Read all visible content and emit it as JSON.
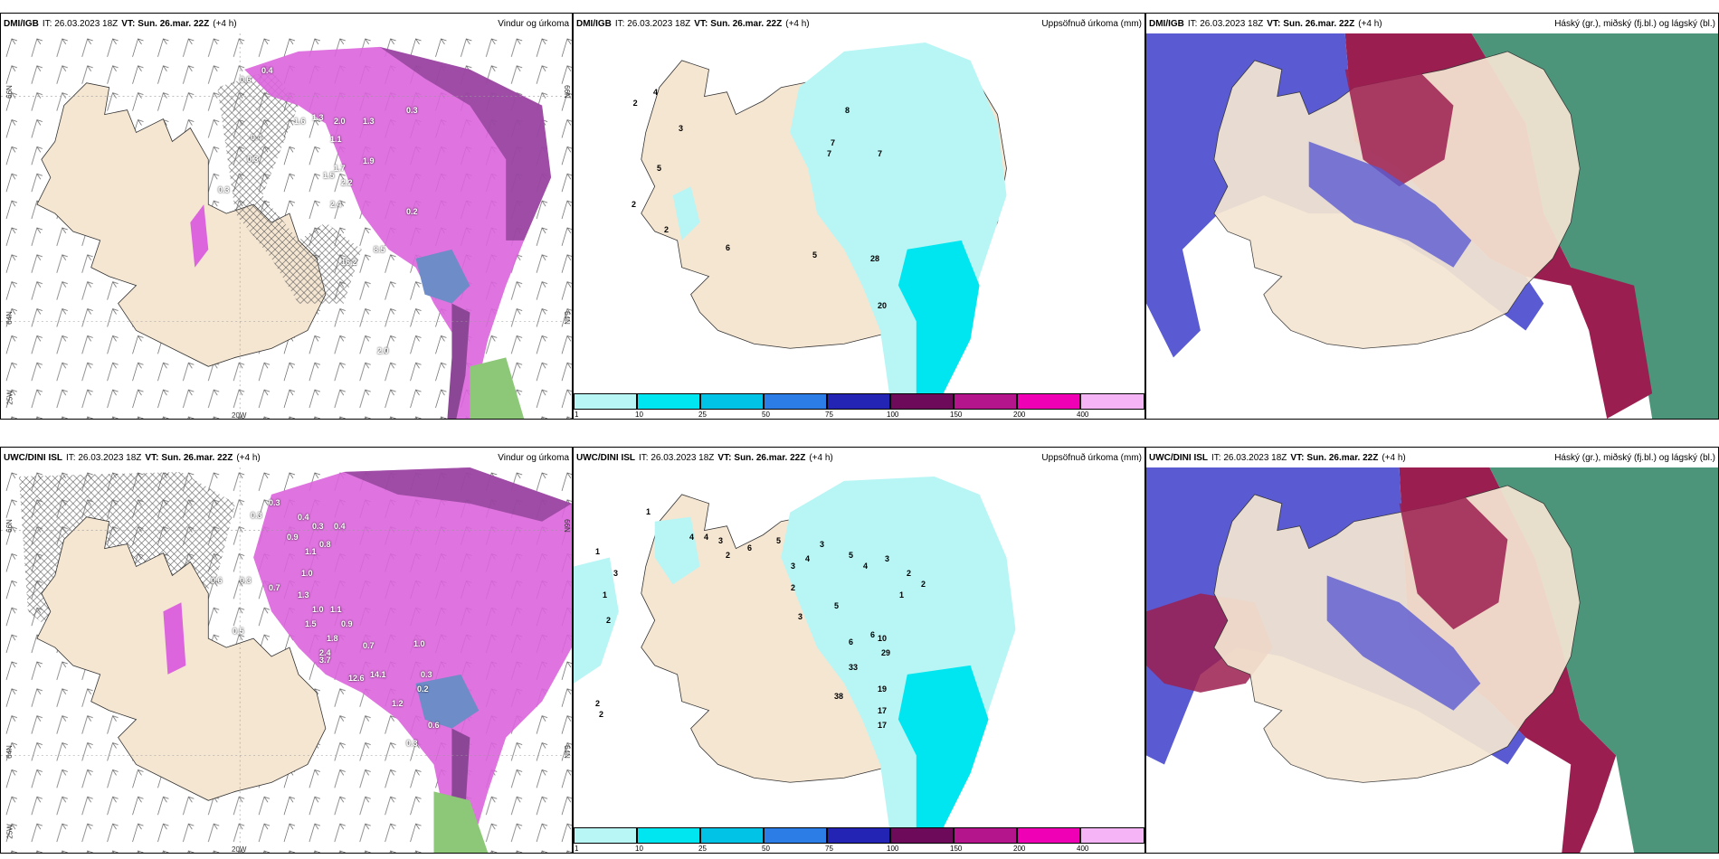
{
  "panels": [
    {
      "model": "DMI/IGB",
      "it_label": "IT:",
      "it": "26.03.2023 18Z",
      "vt_label": "VT:",
      "vt": "Sun. 26.mar. 22Z",
      "lead": "(+4 h)",
      "product": "Vindur og úrkoma",
      "map_labels": [
        "0.4",
        "0.6",
        "0.3",
        "1.3",
        "1.6",
        "2.0",
        "1.3",
        "1.1",
        "1.7",
        "1.9",
        "1.5",
        "2.2",
        "2.4",
        "0.2",
        "16.2",
        "8.5",
        "2.0",
        "0.4",
        "0.3",
        "0.3"
      ],
      "axis": {
        "lat_top": "66N",
        "lat_bottom": "64N",
        "lon": "20W",
        "lon_left": "25W",
        "lat_right_top": "66N",
        "lat_right_bottom": "64N"
      }
    },
    {
      "model": "DMI/IGB",
      "it_label": "IT:",
      "it": "26.03.2023 18Z",
      "vt_label": "VT:",
      "vt": "Sun. 26.mar. 22Z",
      "lead": "(+4 h)",
      "product": "Uppsöfnuð úrkoma (mm)",
      "map_labels": [
        "2",
        "4",
        "3",
        "8",
        "5",
        "7",
        "7",
        "7",
        "2",
        "2",
        "5",
        "6",
        "28",
        "20"
      ]
    },
    {
      "model": "DMI/IGB",
      "it_label": "IT:",
      "it": "26.03.2023 18Z",
      "vt_label": "VT:",
      "vt": "Sun. 26.mar. 22Z",
      "lead": "(+4 h)",
      "product": "Háský (gr.), miðský (fj.bl.) og lágský (bl.)"
    },
    {
      "model": "UWC/DINI ISL",
      "it_label": "IT:",
      "it": "26.03.2023 18Z",
      "vt_label": "VT:",
      "vt": "Sun. 26.mar. 22Z",
      "lead": "(+4 h)",
      "product": "Vindur og úrkoma",
      "map_labels": [
        "0.3",
        "0.3",
        "0.4",
        "0.3",
        "0.4",
        "0.9",
        "0.8",
        "1.1",
        "1.0",
        "0.6",
        "0.3",
        "0.7",
        "1.3",
        "1.0",
        "1.1",
        "0.9",
        "0.5",
        "1.5",
        "1.8",
        "2.4",
        "3.7",
        "14.1",
        "12.6",
        "1.0",
        "0.3",
        "0.6",
        "0.2",
        "0.3",
        "1.2",
        "0.7"
      ],
      "axis": {
        "lat_top": "66N",
        "lat_bottom": "64N",
        "lon": "20W",
        "lon_left": "25W",
        "lat_right_top": "66N",
        "lat_right_bottom": "64N"
      }
    },
    {
      "model": "UWC/DINI ISL",
      "it_label": "IT:",
      "it": "26.03.2023 18Z",
      "vt_label": "VT:",
      "vt": "Sun. 26.mar. 22Z",
      "lead": "(+4 h)",
      "product": "Uppsöfnuð úrkoma (mm)",
      "map_labels": [
        "1",
        "3",
        "1",
        "2",
        "1",
        "4",
        "4",
        "3",
        "2",
        "6",
        "5",
        "3",
        "4",
        "3",
        "5",
        "4",
        "3",
        "2",
        "2",
        "1",
        "2",
        "3",
        "5",
        "6",
        "6",
        "10",
        "29",
        "33",
        "38",
        "19",
        "17",
        "17",
        "2",
        "2"
      ]
    },
    {
      "model": "UWC/DINI ISL",
      "it_label": "IT:",
      "it": "26.03.2023 18Z",
      "vt_label": "VT:",
      "vt": "Sun. 26.mar. 22Z",
      "lead": "(+4 h)",
      "product": "Háský (gr.), miðský (fj.bl.) og lágský (bl.)"
    }
  ],
  "colorbar": {
    "ticks": [
      "1",
      "10",
      "25",
      "50",
      "75",
      "100",
      "150",
      "200",
      "400"
    ],
    "colors": [
      "#b8f5f5",
      "#00e6f0",
      "#00c3e6",
      "#2d7de6",
      "#2323b4",
      "#6e0a5a",
      "#b4148c",
      "#f000b4",
      "#f5b4f5"
    ]
  },
  "colors": {
    "land": "#f5e6d2",
    "precip_pink": "#dc64dc",
    "precip_purple": "#823c8c",
    "high_cloud": "#2d8264",
    "mid_cloud": "#9b1e50",
    "low_cloud": "#5a5ad2"
  }
}
